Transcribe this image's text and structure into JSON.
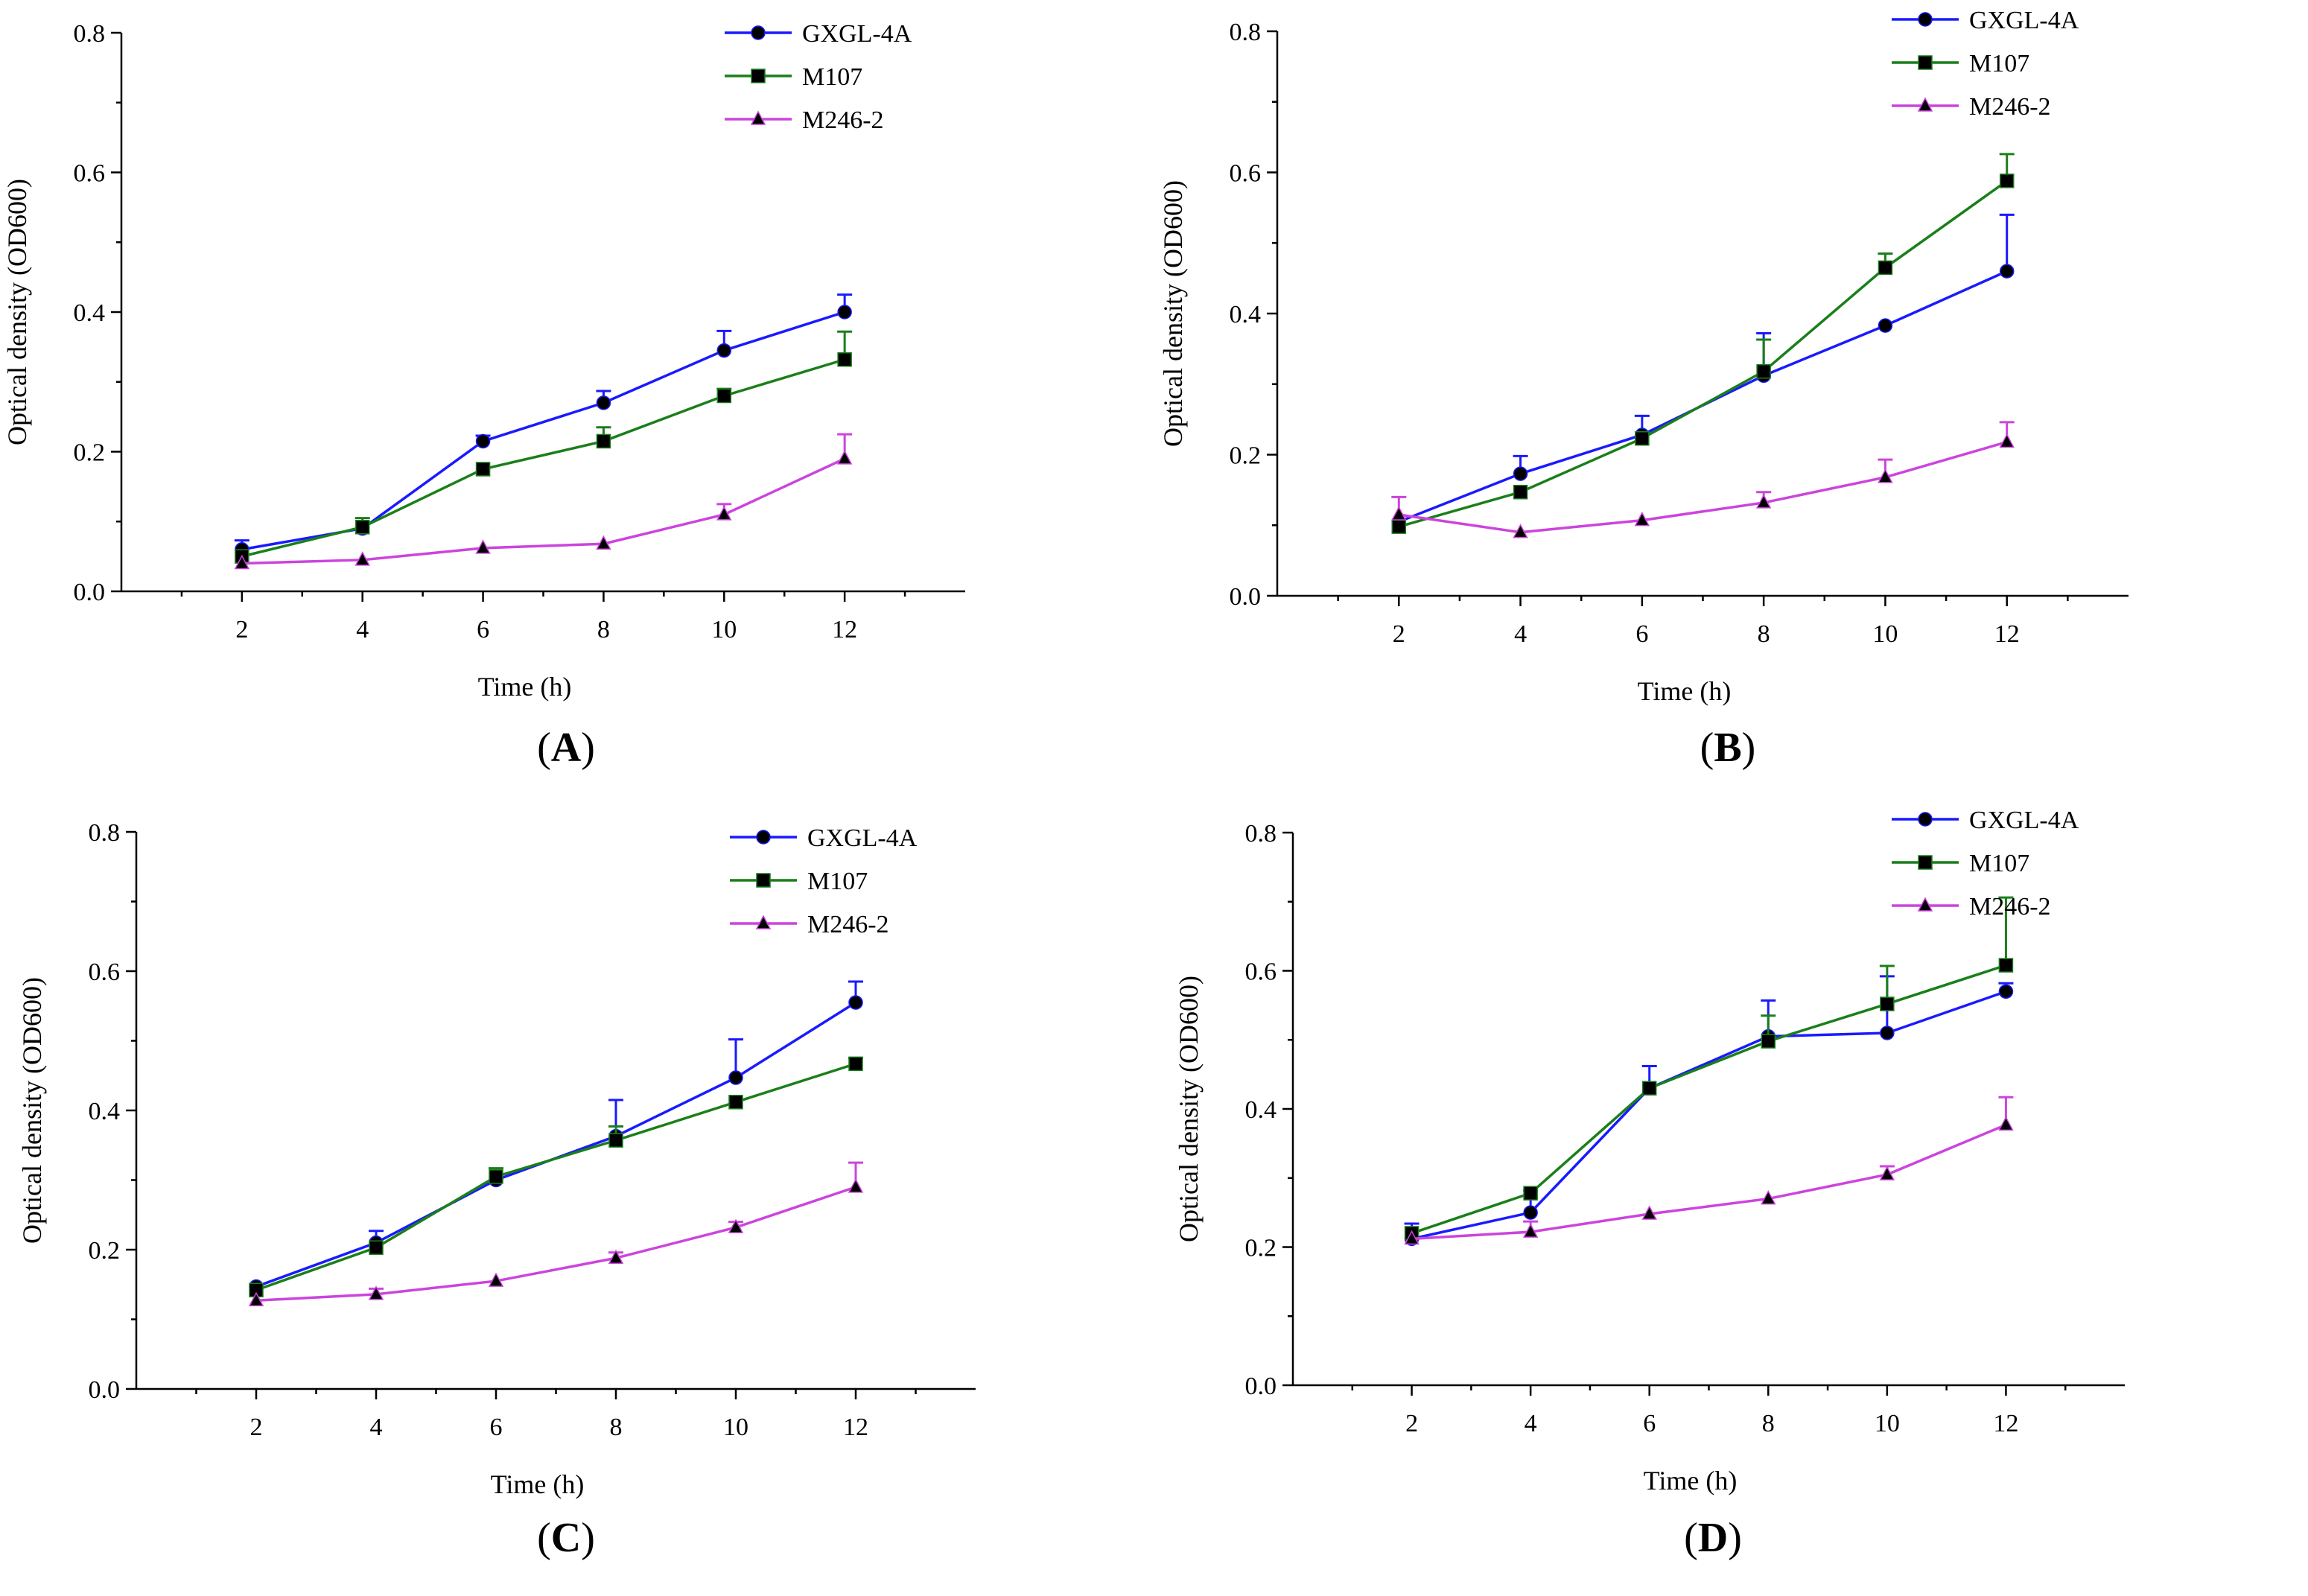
{
  "chart_data": [
    {
      "type": "line",
      "panel": "A",
      "title": "",
      "xlabel": "Time (h)",
      "ylabel": "Optical density (OD600)",
      "x": [
        2,
        4,
        6,
        8,
        10,
        12
      ],
      "xticks": [
        "2",
        "4",
        "6",
        "8",
        "10",
        "12"
      ],
      "yticks": [
        "0.0",
        "0.2",
        "0.4",
        "0.6",
        "0.8"
      ],
      "xlim": [
        0,
        14
      ],
      "ylim": [
        0,
        0.8
      ],
      "legend_position": "top-right",
      "series": [
        {
          "name": "GXGL-4A",
          "color": "#1a1aff",
          "marker": "circle",
          "values": [
            0.06,
            0.09,
            0.215,
            0.27,
            0.345,
            0.4
          ],
          "errors": [
            0.013,
            0.0,
            0.008,
            0.017,
            0.028,
            0.025
          ]
        },
        {
          "name": "M107",
          "color": "#1a7f1a",
          "marker": "square",
          "values": [
            0.05,
            0.092,
            0.175,
            0.215,
            0.28,
            0.332
          ],
          "errors": [
            0.0,
            0.013,
            0.0,
            0.02,
            0.01,
            0.04
          ]
        },
        {
          "name": "M246-2",
          "color": "#cc44dd",
          "marker": "triangle",
          "values": [
            0.04,
            0.045,
            0.062,
            0.068,
            0.11,
            0.19
          ],
          "errors": [
            0.0,
            0.0,
            0.0,
            0.0,
            0.015,
            0.035
          ]
        }
      ]
    },
    {
      "type": "line",
      "panel": "B",
      "title": "",
      "xlabel": "Time (h)",
      "ylabel": "Optical density (OD600)",
      "x": [
        2,
        4,
        6,
        8,
        10,
        12
      ],
      "xticks": [
        "2",
        "4",
        "6",
        "8",
        "10",
        "12"
      ],
      "yticks": [
        "0.0",
        "0.2",
        "0.4",
        "0.6",
        "0.8"
      ],
      "xlim": [
        0,
        14
      ],
      "ylim": [
        0,
        0.8
      ],
      "legend_position": "top-right",
      "series": [
        {
          "name": "GXGL-4A",
          "color": "#1a1aff",
          "marker": "circle",
          "values": [
            0.105,
            0.173,
            0.228,
            0.312,
            0.383,
            0.46
          ],
          "errors": [
            0.0,
            0.025,
            0.027,
            0.06,
            0.0,
            0.08
          ]
        },
        {
          "name": "M107",
          "color": "#1a7f1a",
          "marker": "square",
          "values": [
            0.098,
            0.147,
            0.223,
            0.318,
            0.465,
            0.588
          ],
          "errors": [
            0.0,
            0.0,
            0.0,
            0.045,
            0.02,
            0.038
          ]
        },
        {
          "name": "M246-2",
          "color": "#cc44dd",
          "marker": "triangle",
          "values": [
            0.115,
            0.09,
            0.107,
            0.132,
            0.168,
            0.218
          ],
          "errors": [
            0.025,
            0.0,
            0.0,
            0.015,
            0.025,
            0.028
          ]
        }
      ]
    },
    {
      "type": "line",
      "panel": "C",
      "title": "",
      "xlabel": "Time (h)",
      "ylabel": "Optical density (OD600)",
      "x": [
        2,
        4,
        6,
        8,
        10,
        12
      ],
      "xticks": [
        "2",
        "4",
        "6",
        "8",
        "10",
        "12"
      ],
      "yticks": [
        "0.0",
        "0.2",
        "0.4",
        "0.6",
        "0.8"
      ],
      "xlim": [
        0,
        14
      ],
      "ylim": [
        0,
        0.8
      ],
      "legend_position": "top-right",
      "series": [
        {
          "name": "GXGL-4A",
          "color": "#1a1aff",
          "marker": "circle",
          "values": [
            0.147,
            0.21,
            0.3,
            0.363,
            0.447,
            0.555
          ],
          "errors": [
            0.0,
            0.017,
            0.0,
            0.052,
            0.055,
            0.03
          ]
        },
        {
          "name": "M107",
          "color": "#1a7f1a",
          "marker": "square",
          "values": [
            0.142,
            0.203,
            0.305,
            0.357,
            0.412,
            0.467
          ],
          "errors": [
            0.0,
            0.0,
            0.012,
            0.02,
            0.0,
            0.008
          ]
        },
        {
          "name": "M246-2",
          "color": "#cc44dd",
          "marker": "triangle",
          "values": [
            0.127,
            0.136,
            0.155,
            0.188,
            0.232,
            0.29
          ],
          "errors": [
            0.0,
            0.008,
            0.0,
            0.008,
            0.008,
            0.035
          ]
        }
      ]
    },
    {
      "type": "line",
      "panel": "D",
      "title": "",
      "xlabel": "Time (h)",
      "ylabel": "Optical density (OD600)",
      "x": [
        2,
        4,
        6,
        8,
        10,
        12
      ],
      "xticks": [
        "2",
        "4",
        "6",
        "8",
        "10",
        "12"
      ],
      "yticks": [
        "0.0",
        "0.2",
        "0.4",
        "0.6",
        "0.8"
      ],
      "xlim": [
        0,
        14
      ],
      "ylim": [
        0,
        0.8
      ],
      "legend_position": "top-right",
      "series": [
        {
          "name": "GXGL-4A",
          "color": "#1a1aff",
          "marker": "circle",
          "values": [
            0.212,
            0.25,
            0.43,
            0.505,
            0.51,
            0.57
          ],
          "errors": [
            0.022,
            0.032,
            0.032,
            0.052,
            0.082,
            0.012
          ]
        },
        {
          "name": "M107",
          "color": "#1a7f1a",
          "marker": "square",
          "values": [
            0.22,
            0.278,
            0.43,
            0.498,
            0.552,
            0.608
          ],
          "errors": [
            0.0,
            0.0,
            0.0,
            0.037,
            0.055,
            0.098
          ]
        },
        {
          "name": "M246-2",
          "color": "#cc44dd",
          "marker": "triangle",
          "values": [
            0.212,
            0.222,
            0.248,
            0.27,
            0.305,
            0.377
          ],
          "errors": [
            0.0,
            0.015,
            0.0,
            0.0,
            0.012,
            0.04
          ]
        }
      ]
    }
  ]
}
